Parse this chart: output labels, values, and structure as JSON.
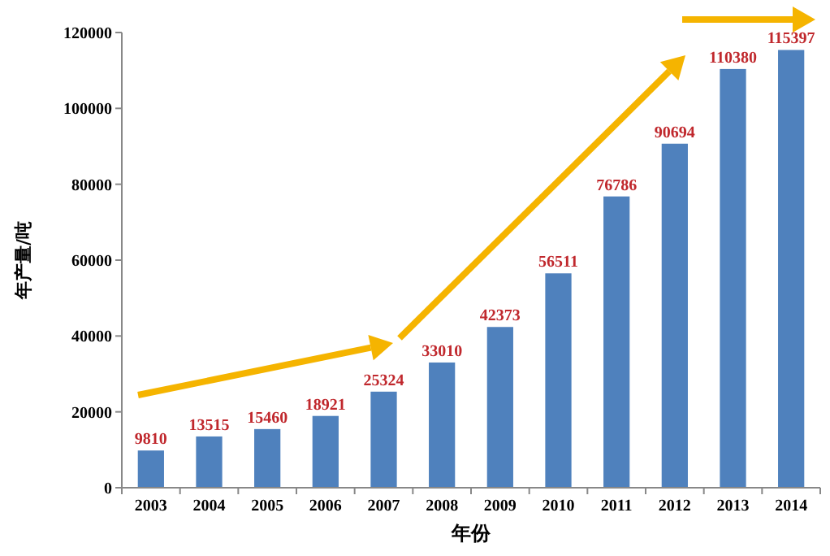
{
  "chart_data": {
    "type": "bar",
    "xlabel": "年份",
    "ylabel": "年产量/吨",
    "categories": [
      "2003",
      "2004",
      "2005",
      "2006",
      "2007",
      "2008",
      "2009",
      "2010",
      "2011",
      "2012",
      "2013",
      "2014"
    ],
    "values": [
      9810,
      13515,
      15460,
      18921,
      25324,
      33010,
      42373,
      56511,
      76786,
      90694,
      110380,
      115397
    ],
    "color": "#4f81bd",
    "ylim": [
      0,
      120000
    ],
    "yticks": [
      0,
      20000,
      40000,
      60000,
      80000,
      100000,
      120000
    ],
    "data_labels": true,
    "grid": false
  }
}
